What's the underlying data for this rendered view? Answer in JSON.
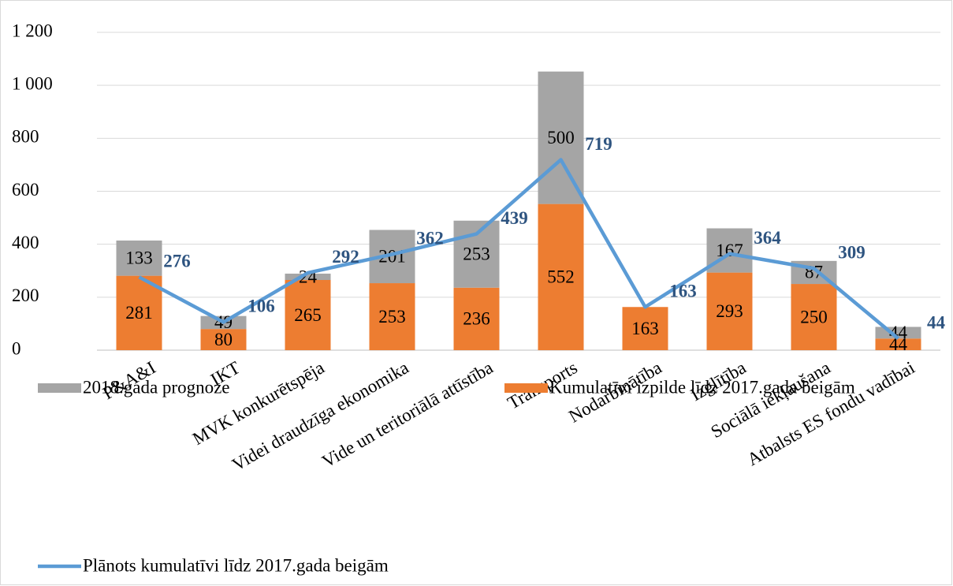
{
  "chart_data": {
    "type": "bar",
    "categories": [
      "P&A&I",
      "IKT",
      "MVK konkurētspēja",
      "Videi draudzīga ekonomika",
      "Vide un teritoriālā attīstība",
      "Transports",
      "Nodarbinātība",
      "Izglītība",
      "Sociālā iekļaušana",
      "Atbalsts ES fondu vadībai"
    ],
    "series": [
      {
        "name": "Kumulatīvi izpilde līdz 2017.gada beigām",
        "type": "bar",
        "color": "#ed7d31",
        "values": [
          281,
          80,
          265,
          253,
          236,
          552,
          163,
          293,
          250,
          44
        ]
      },
      {
        "name": "2018.gada prognoze",
        "type": "bar",
        "color": "#a5a5a5",
        "values": [
          133,
          49,
          24,
          201,
          253,
          500,
          null,
          167,
          87,
          44
        ]
      },
      {
        "name": "Plānots kumulatīvi līdz 2017.gada beigām",
        "type": "line",
        "color": "#5b9bd5",
        "values": [
          276,
          106,
          292,
          362,
          439,
          719,
          163,
          364,
          309,
          44
        ]
      }
    ],
    "ylim": [
      0,
      1200
    ],
    "yticks": [
      0,
      200,
      400,
      600,
      800,
      {
        "value": 1000,
        "label": "1 000"
      },
      {
        "value": 1200,
        "label": "1 200"
      }
    ],
    "grid": true
  }
}
